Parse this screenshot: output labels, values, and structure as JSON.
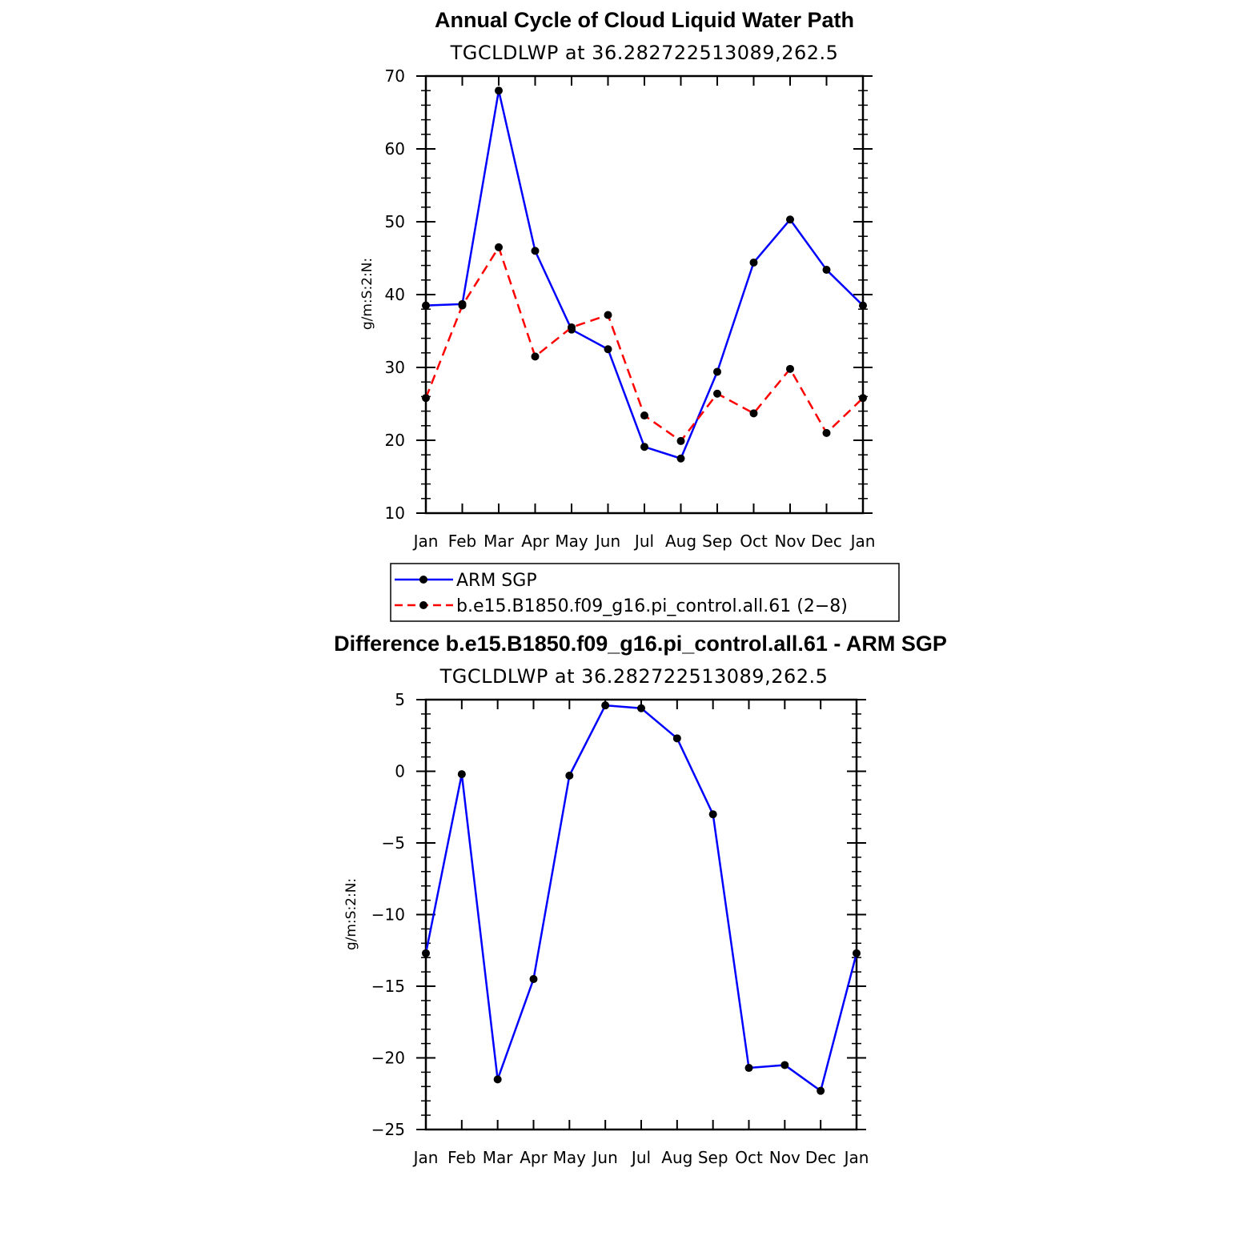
{
  "chart_data": [
    {
      "type": "line",
      "title": "Annual Cycle of Cloud Liquid Water Path",
      "subtitle": "TGCLDLWP at 36.282722513089,262.5",
      "ylabel": "g/m:S:2:N:",
      "categories": [
        "Jan",
        "Feb",
        "Mar",
        "Apr",
        "May",
        "Jun",
        "Jul",
        "Aug",
        "Sep",
        "Oct",
        "Nov",
        "Dec",
        "Jan"
      ],
      "ylim": [
        10,
        70
      ],
      "yticks": [
        10,
        20,
        30,
        40,
        50,
        60,
        70
      ],
      "series": [
        {
          "name": "ARM SGP",
          "color": "#0000ff",
          "dash": "solid",
          "values": [
            38.5,
            38.7,
            68.0,
            46.0,
            35.2,
            32.5,
            19.1,
            17.5,
            29.4,
            44.4,
            50.3,
            43.4,
            38.5
          ]
        },
        {
          "name": "b.e15.B1850.f09_g16.pi_control.all.61 (2−8)",
          "color": "#ff0000",
          "dash": "dashed",
          "values": [
            25.8,
            38.5,
            46.5,
            31.5,
            35.5,
            37.2,
            23.4,
            19.9,
            26.4,
            23.7,
            29.8,
            21.0,
            25.8
          ]
        }
      ],
      "legend": "below"
    },
    {
      "type": "line",
      "title": "Difference b.e15.B1850.f09_g16.pi_control.all.61 - ARM SGP",
      "subtitle": "TGCLDLWP at 36.282722513089,262.5",
      "ylabel": "g/m:S:2:N:",
      "categories": [
        "Jan",
        "Feb",
        "Mar",
        "Apr",
        "May",
        "Jun",
        "Jul",
        "Aug",
        "Sep",
        "Oct",
        "Nov",
        "Dec",
        "Jan"
      ],
      "ylim": [
        -25,
        5
      ],
      "yticks": [
        -25,
        -20,
        -15,
        -10,
        -5,
        0,
        5
      ],
      "ytick_labels": [
        "−25",
        "−20",
        "−15",
        "−10",
        "−5",
        "0",
        "5"
      ],
      "series": [
        {
          "color": "#0000ff",
          "dash": "solid",
          "values": [
            -12.7,
            -0.2,
            -21.5,
            -14.5,
            -0.3,
            4.6,
            4.4,
            2.3,
            -3.0,
            -20.7,
            -20.5,
            -22.3,
            -12.7
          ]
        }
      ]
    }
  ],
  "legend": {
    "entries": [
      {
        "label": "ARM SGP"
      },
      {
        "label": "b.e15.B1850.f09_g16.pi_control.all.61 (2−8)"
      }
    ]
  }
}
